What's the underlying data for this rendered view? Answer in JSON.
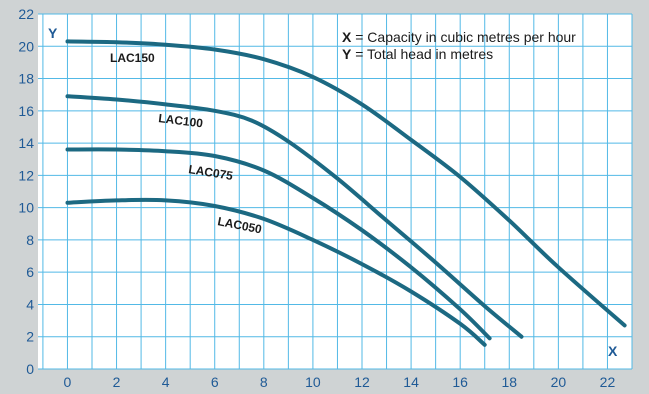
{
  "chart_data": {
    "type": "line",
    "title": "",
    "xlabel": "X",
    "ylabel": "Y",
    "xlim": [
      -1.2,
      23
    ],
    "ylim": [
      0,
      22
    ],
    "x_ticks": [
      "0",
      "2",
      "4",
      "6",
      "8",
      "10",
      "12",
      "14",
      "16",
      "18",
      "20",
      "22"
    ],
    "y_ticks": [
      "0",
      "2",
      "4",
      "6",
      "8",
      "10",
      "12",
      "14",
      "16",
      "18",
      "20",
      "22"
    ],
    "grid": true,
    "legend": {
      "position": "top-right",
      "entries": [
        {
          "key": "X",
          "text": " = Capacity in cubic metres per hour"
        },
        {
          "key": "Y",
          "text": " = Total head in metres"
        }
      ]
    },
    "series": [
      {
        "name": "LAC150",
        "x": [
          0,
          2,
          4,
          6,
          8,
          10,
          12,
          14,
          16,
          18,
          20,
          22.7
        ],
        "y": [
          20.3,
          20.25,
          20.1,
          19.8,
          19.2,
          18.1,
          16.4,
          14.2,
          11.9,
          9.2,
          6.3,
          2.7
        ]
      },
      {
        "name": "LAC100",
        "x": [
          0,
          2,
          4,
          6,
          7.5,
          9,
          11,
          13,
          15,
          17,
          18.5
        ],
        "y": [
          16.9,
          16.7,
          16.4,
          16.0,
          15.4,
          14.1,
          11.8,
          9.2,
          6.6,
          3.9,
          2.0
        ]
      },
      {
        "name": "LAC075",
        "x": [
          0,
          2,
          4,
          6,
          8,
          10,
          12,
          14,
          16,
          17.2
        ],
        "y": [
          13.6,
          13.6,
          13.5,
          13.2,
          12.3,
          10.6,
          8.6,
          6.3,
          3.7,
          1.9
        ]
      },
      {
        "name": "LAC050",
        "x": [
          0,
          2,
          4,
          6,
          8,
          10,
          12,
          14,
          16,
          17
        ],
        "y": [
          10.3,
          10.45,
          10.45,
          10.1,
          9.3,
          8.0,
          6.5,
          4.8,
          2.8,
          1.5
        ]
      }
    ]
  }
}
